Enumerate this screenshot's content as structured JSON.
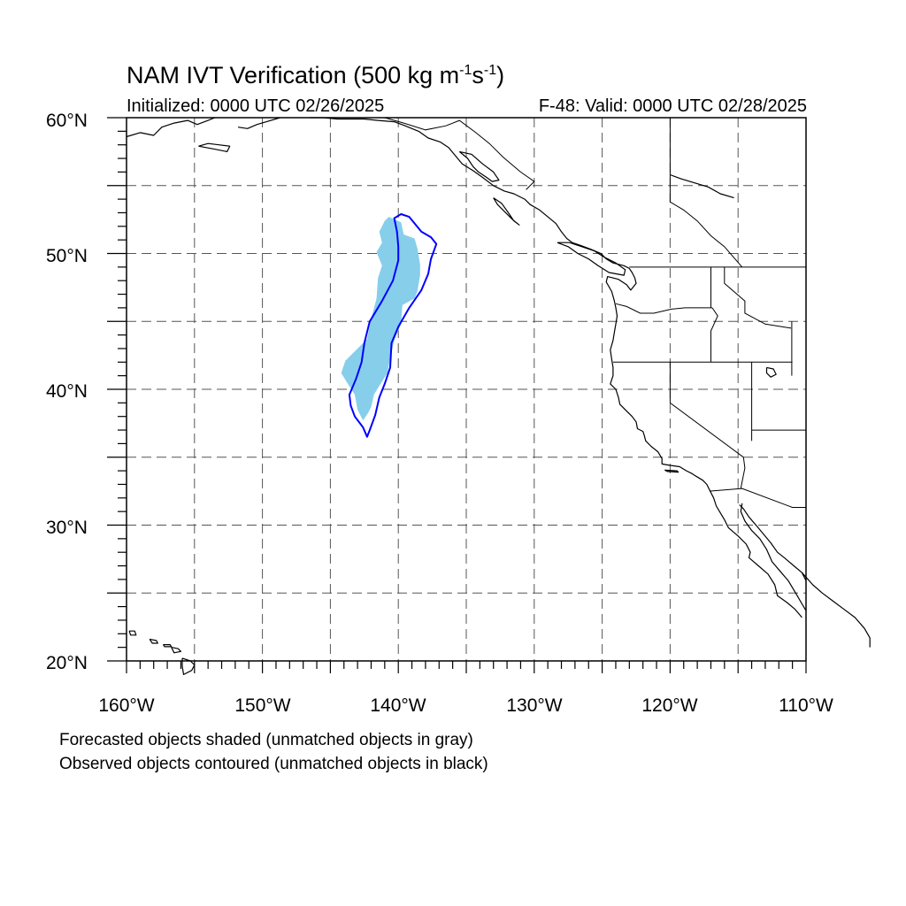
{
  "title": {
    "prefix": "NAM IVT Verification (500 kg m",
    "exp1": "-1",
    "mid": "s",
    "exp2": "-1",
    "suffix": ")"
  },
  "initialized": "Initialized: 0000 UTC 02/26/2025",
  "valid": "F-48: Valid: 0000 UTC 02/28/2025",
  "map": {
    "projection": "cylindrical equidistant",
    "lon_range": [
      -160,
      -110
    ],
    "lat_range": [
      20,
      60
    ],
    "lat_labels": [
      "20°N",
      "30°N",
      "40°N",
      "50°N",
      "60°N"
    ],
    "lon_labels": [
      "160°W",
      "150°W",
      "140°W",
      "130°W",
      "120°W",
      "110°W"
    ],
    "grid": "dashed every 5°",
    "colors": {
      "forecast_matched_fill": "#87ceeb",
      "observed_matched_contour": "#0000ff",
      "coastline": "#000000"
    }
  },
  "objects": {
    "forecast_shaded": {
      "color": "light blue",
      "polygon_lonlat": [
        [
          -140.7,
          52.7
        ],
        [
          -139.8,
          52.3
        ],
        [
          -139.6,
          51.4
        ],
        [
          -138.8,
          51.1
        ],
        [
          -138.6,
          50.4
        ],
        [
          -138.4,
          49.2
        ],
        [
          -138.4,
          48.4
        ],
        [
          -138.6,
          47.2
        ],
        [
          -138.8,
          46.7
        ],
        [
          -139.7,
          46.2
        ],
        [
          -139.8,
          44.8
        ],
        [
          -140.3,
          43.6
        ],
        [
          -140.6,
          42.3
        ],
        [
          -140.8,
          41.2
        ],
        [
          -141.5,
          40.1
        ],
        [
          -141.8,
          39.6
        ],
        [
          -142.0,
          38.7
        ],
        [
          -142.2,
          38.3
        ],
        [
          -142.6,
          37.7
        ],
        [
          -143.0,
          38.5
        ],
        [
          -143.2,
          39.6
        ],
        [
          -143.9,
          40.7
        ],
        [
          -144.2,
          41.2
        ],
        [
          -143.9,
          42.1
        ],
        [
          -143.0,
          43.0
        ],
        [
          -142.3,
          43.7
        ],
        [
          -142.0,
          45.2
        ],
        [
          -141.6,
          46.7
        ],
        [
          -141.5,
          48.2
        ],
        [
          -141.2,
          49.1
        ],
        [
          -141.6,
          50.1
        ],
        [
          -141.2,
          50.8
        ],
        [
          -141.4,
          51.6
        ],
        [
          -141.0,
          52.4
        ]
      ]
    },
    "observed_contour": {
      "color": "blue",
      "polygon_lonlat": [
        [
          -139.8,
          52.9
        ],
        [
          -139.2,
          52.7
        ],
        [
          -138.3,
          51.6
        ],
        [
          -137.6,
          51.2
        ],
        [
          -137.2,
          50.7
        ],
        [
          -137.6,
          49.6
        ],
        [
          -137.8,
          48.5
        ],
        [
          -138.3,
          47.3
        ],
        [
          -139.2,
          46.0
        ],
        [
          -140.0,
          44.6
        ],
        [
          -140.5,
          43.4
        ],
        [
          -140.6,
          41.6
        ],
        [
          -141.0,
          40.4
        ],
        [
          -141.4,
          39.4
        ],
        [
          -141.7,
          38.1
        ],
        [
          -142.1,
          37.0
        ],
        [
          -142.3,
          36.5
        ],
        [
          -142.6,
          37.2
        ],
        [
          -143.2,
          38.0
        ],
        [
          -143.5,
          38.8
        ],
        [
          -143.6,
          39.6
        ],
        [
          -143.1,
          40.8
        ],
        [
          -142.7,
          42.0
        ],
        [
          -142.5,
          43.4
        ],
        [
          -142.1,
          45.0
        ],
        [
          -141.2,
          46.5
        ],
        [
          -140.4,
          48.0
        ],
        [
          -140.0,
          49.5
        ],
        [
          -140.0,
          50.5
        ],
        [
          -140.1,
          51.6
        ],
        [
          -140.3,
          52.6
        ]
      ]
    }
  },
  "footnotes": [
    "Forecasted objects shaded (unmatched objects in gray)",
    "Observed objects contoured (unmatched objects in black)"
  ]
}
